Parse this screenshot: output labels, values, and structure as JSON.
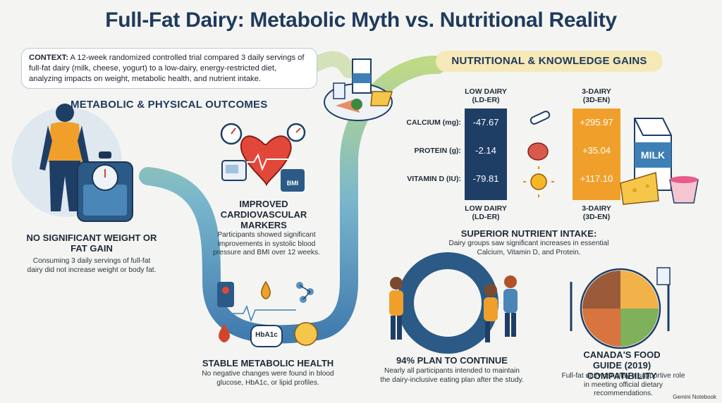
{
  "title": "Full-Fat Dairy: Metabolic Myth vs. Nutritional Reality",
  "context": {
    "label": "CONTEXT:",
    "text": "A 12-week randomized controlled trial compared 3 daily servings of full-fat dairy (milk, cheese, yogurt) to a low-dairy, energy-restricted diet, analyzing impacts on weight, metabolic health, and nutrient intake."
  },
  "metabolic": {
    "heading": "METABOLIC & PHYSICAL OUTCOMES",
    "weight": {
      "title": "NO SIGNIFICANT WEIGHT OR FAT GAIN",
      "body": "Consuming 3 daily servings of full-fat dairy did not increase weight or body fat."
    },
    "cardio": {
      "title": "IMPROVED CARDIOVASCULAR MARKERS",
      "body": "Participants showed significant improvements in systolic blood pressure and BMI over 12 weeks.",
      "bmi_label": "BMI"
    },
    "health": {
      "title": "STABLE METABOLIC HEALTH",
      "body": "No negative changes were found in blood glucose, HbA1c, or lipid profiles.",
      "hba1c_label": "HbA1c"
    }
  },
  "nutrition": {
    "heading": "NUTRITIONAL & KNOWLEDGE GAINS",
    "low_head": "LOW DAIRY (LD-ER)",
    "low_head_1": "LOW DAIRY",
    "low_head_2": "(LD-ER)",
    "high_head_1": "3-DAIRY",
    "high_head_2": "(3D-EN)",
    "rows": [
      {
        "label": "CALCIUM (mg):",
        "ld": "-47.67",
        "hd": "+295.97"
      },
      {
        "label": "PROTEIN (g):",
        "ld": "-2.14",
        "hd": "+35.04"
      },
      {
        "label": "VITAMIN D (IU):",
        "ld": "-79.81",
        "hd": "+117.10"
      }
    ],
    "intake_title": "SUPERIOR NUTRIENT INTAKE:",
    "intake_body": "Dairy groups saw significant increases in essential Calcium, Vitamin D, and Protein.",
    "milk_label": "MILK"
  },
  "plan": {
    "title": "94% PLAN TO CONTINUE",
    "body": "Nearly all participants intended to maintain the dairy-inclusive eating plan after the study."
  },
  "guide": {
    "title": "CANADA'S FOOD GUIDE (2019) COMPATIBILITY",
    "body": "Full-fat dairy can play a supportive role in meeting official dietary recommendations."
  },
  "watermark": "Gemini Notebook",
  "colors": {
    "navy": "#1f3a5c",
    "low_dairy_bar": "#1f3e66",
    "three_dairy_bar": "#f0a02a",
    "path_blue": "#3e7fb6",
    "path_green": "#a7c96b"
  }
}
